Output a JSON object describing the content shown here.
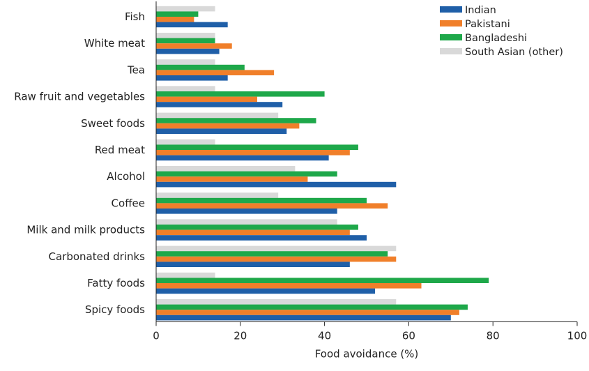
{
  "chart_data": {
    "type": "bar",
    "orientation": "horizontal",
    "categories": [
      "Fish",
      "White meat",
      "Tea",
      "Raw fruit and vegetables",
      "Sweet foods",
      "Red meat",
      "Alcohol",
      "Coffee",
      "Milk and milk products",
      "Carbonated drinks",
      "Fatty foods",
      "Spicy foods"
    ],
    "series": [
      {
        "name": "Indian",
        "color": "#1f5fa8",
        "values": [
          17,
          15,
          17,
          30,
          31,
          41,
          57,
          43,
          50,
          46,
          52,
          70
        ]
      },
      {
        "name": "Pakistani",
        "color": "#f07f2a",
        "values": [
          9,
          18,
          28,
          24,
          34,
          46,
          36,
          55,
          46,
          57,
          63,
          72
        ]
      },
      {
        "name": "Bangladeshi",
        "color": "#1ea84a",
        "values": [
          10,
          14,
          21,
          40,
          38,
          48,
          43,
          50,
          48,
          55,
          79,
          74
        ]
      },
      {
        "name": "South Asian (other)",
        "color": "#d9d9d9",
        "values": [
          14,
          14,
          14,
          14,
          29,
          14,
          33,
          29,
          43,
          57,
          14,
          57
        ]
      }
    ],
    "xlabel": "Food avoidance (%)",
    "xlim": [
      0,
      100
    ],
    "xticks": [
      "0",
      "20",
      "40",
      "60",
      "80",
      "100"
    ],
    "legend": "top-right",
    "grid": false
  }
}
